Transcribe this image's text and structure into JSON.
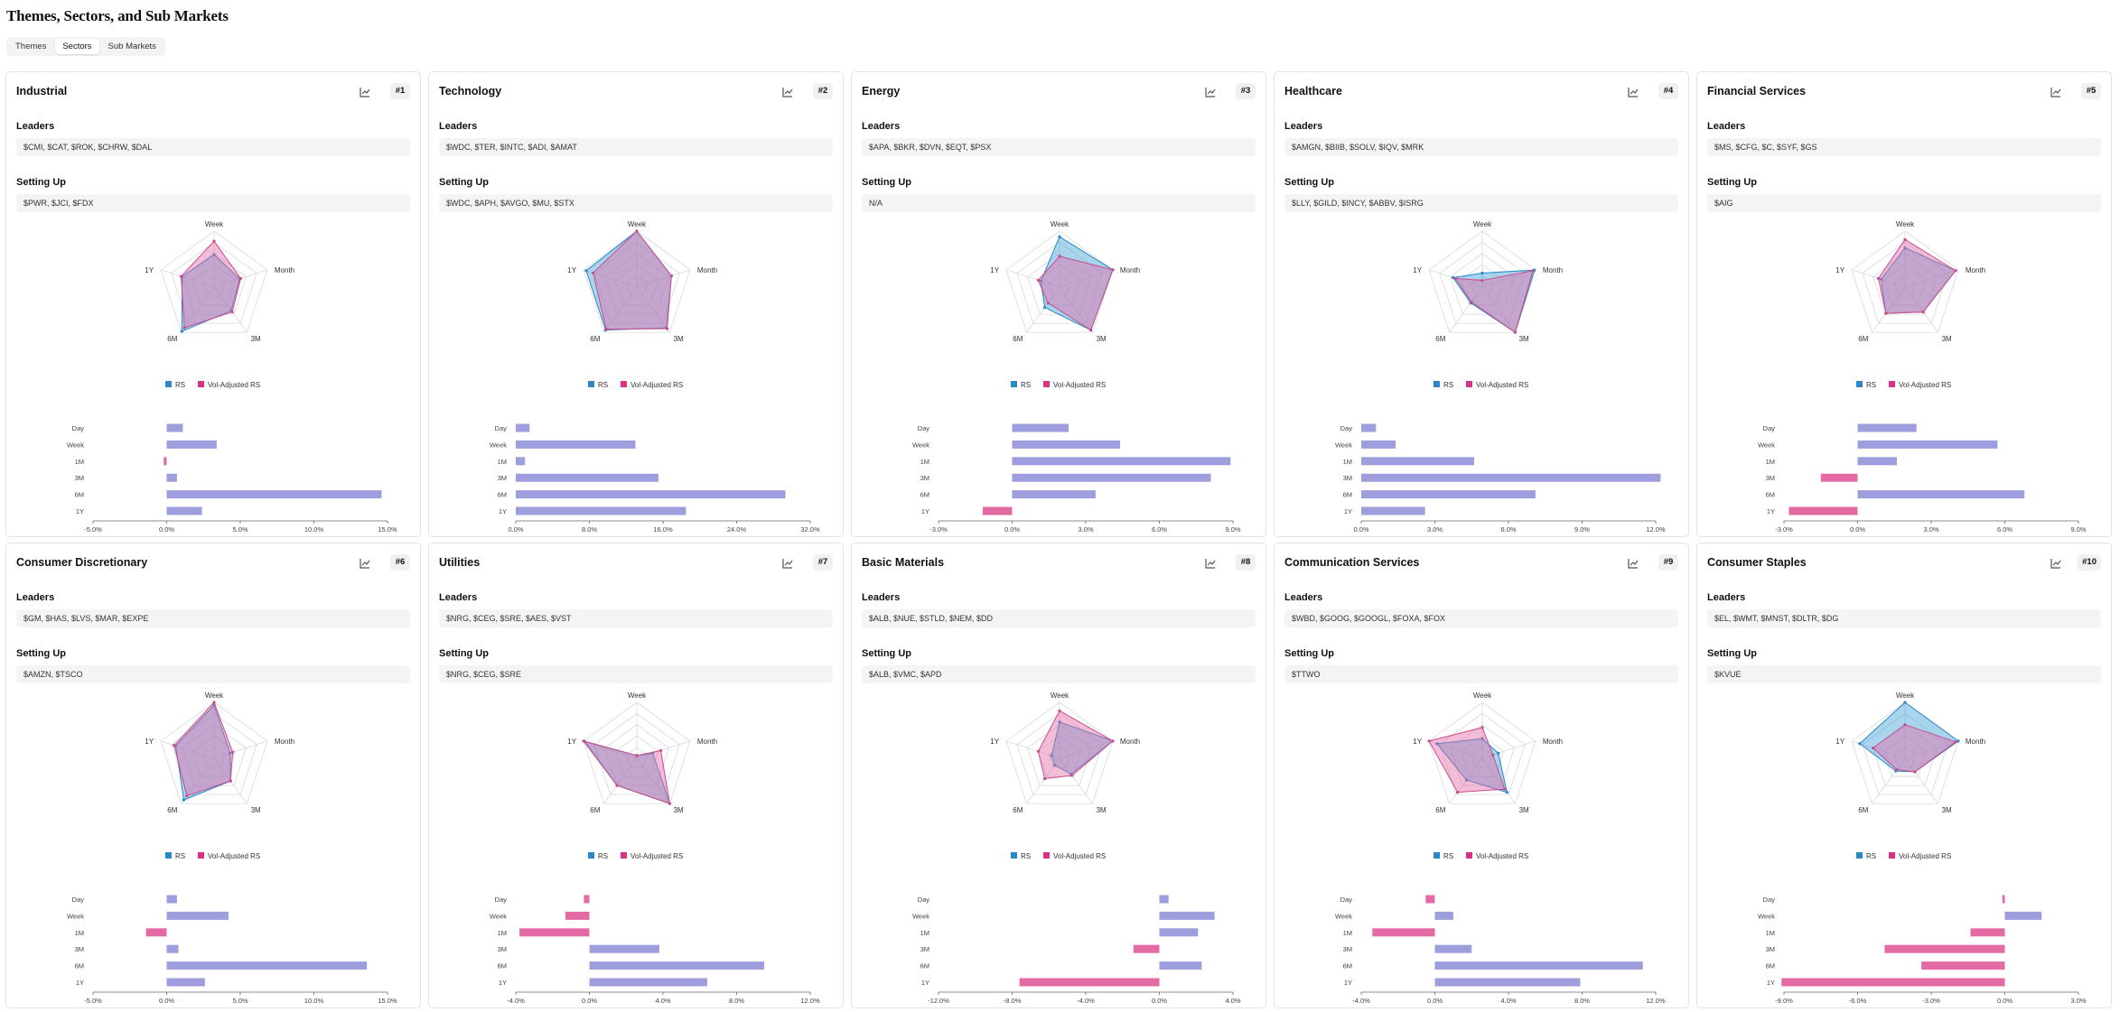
{
  "page": {
    "title": "Themes, Sectors, and Sub Markets",
    "tabs": [
      "Themes",
      "Sectors",
      "Sub Markets"
    ],
    "active_tab": "Sectors"
  },
  "labels": {
    "leaders": "Leaders",
    "setting_up": "Setting Up",
    "legend_rs": "RS",
    "legend_vol": "Vol-Adjusted RS",
    "radar_axes": [
      "Week",
      "Month",
      "3M",
      "6M",
      "1Y"
    ],
    "bar_periods": [
      "Day",
      "Week",
      "1M",
      "3M",
      "6M",
      "1Y"
    ]
  },
  "colors": {
    "rs_fill": "#3da1d8",
    "vol_fill": "#e46aa6",
    "positive_bar": "#9e9ede",
    "negative_bar": "#e46aa6",
    "legend_rs": "#2a87c8",
    "legend_vol": "#d63384"
  },
  "sectors": [
    {
      "name": "Industrial",
      "rank": "#1",
      "leaders": "$CMI, $CAT, $ROK, $CHRW, $DAL",
      "setting_up": "$PWR, $JCI, $FDX",
      "radar_rs": [
        0.58,
        0.48,
        0.52,
        0.98,
        0.6
      ],
      "radar_vol": [
        0.82,
        0.5,
        0.55,
        0.9,
        0.62
      ],
      "bars": [
        1.1,
        3.4,
        -0.2,
        0.7,
        14.6,
        2.4
      ],
      "axis_ticks": [
        "-5.0%",
        "0.0%",
        "5.0%",
        "10.0%",
        "15.0%"
      ],
      "axis_min": -5,
      "axis_max": 15
    },
    {
      "name": "Technology",
      "rank": "#2",
      "leaders": "$WDC, $TER, $INTC, $ADI, $AMAT",
      "setting_up": "$WDC, $APH, $AVGO, $MU, $STX",
      "radar_rs": [
        1.0,
        0.65,
        0.9,
        0.95,
        0.95
      ],
      "radar_vol": [
        1.0,
        0.65,
        0.92,
        0.93,
        0.82
      ],
      "bars": [
        1.5,
        13.0,
        1.0,
        15.5,
        29.3,
        18.5
      ],
      "axis_ticks": [
        "0.0%",
        "8.0%",
        "16.0%",
        "24.0%",
        "32.0%"
      ],
      "axis_min": 0,
      "axis_max": 32
    },
    {
      "name": "Energy",
      "rank": "#3",
      "leaders": "$APA, $BKR, $DVN, $EQT, $PSX",
      "setting_up": "N/A",
      "radar_rs": [
        0.9,
        1.0,
        0.95,
        0.45,
        0.35
      ],
      "radar_vol": [
        0.55,
        1.0,
        0.95,
        0.35,
        0.4
      ],
      "bars": [
        2.3,
        4.4,
        8.9,
        8.1,
        3.4,
        -1.2
      ],
      "axis_ticks": [
        "-3.0%",
        "0.0%",
        "3.0%",
        "6.0%",
        "9.0%"
      ],
      "axis_min": -3,
      "axis_max": 9
    },
    {
      "name": "Healthcare",
      "rank": "#4",
      "leaders": "$AMGN, $BIIB, $SOLV, $IQV, $MRK",
      "setting_up": "$LLY, $GILD, $INCY, $ABBV, $ISRG",
      "radar_rs": [
        0.25,
        0.98,
        1.0,
        0.35,
        0.55
      ],
      "radar_vol": [
        0.12,
        0.95,
        1.0,
        0.33,
        0.5
      ],
      "bars": [
        0.6,
        1.4,
        4.6,
        12.2,
        7.1,
        2.6
      ],
      "axis_ticks": [
        "0.0%",
        "3.0%",
        "6.0%",
        "9.0%",
        "12.0%"
      ],
      "axis_min": 0,
      "axis_max": 12
    },
    {
      "name": "Financial Services",
      "rank": "#5",
      "leaders": "$MS, $CFG, $C, $SYF, $GS",
      "setting_up": "$AIG",
      "radar_rs": [
        0.7,
        0.95,
        0.55,
        0.58,
        0.45
      ],
      "radar_vol": [
        0.85,
        0.95,
        0.55,
        0.58,
        0.5
      ],
      "bars": [
        2.4,
        5.7,
        1.6,
        -1.5,
        6.8,
        -2.8
      ],
      "axis_ticks": [
        "-3.0%",
        "0.0%",
        "3.0%",
        "6.0%",
        "9.0%"
      ],
      "axis_min": -3,
      "axis_max": 9
    },
    {
      "name": "Consumer Discretionary",
      "rank": "#6",
      "leaders": "$GM, $HAS, $LVS, $MAR, $EXPE",
      "setting_up": "$AMZN, $TSCO",
      "radar_rs": [
        0.95,
        0.3,
        0.5,
        0.92,
        0.72
      ],
      "radar_vol": [
        1.0,
        0.35,
        0.5,
        0.83,
        0.75
      ],
      "bars": [
        0.7,
        4.2,
        -1.4,
        0.8,
        13.6,
        2.6
      ],
      "axis_ticks": [
        "-5.0%",
        "0.0%",
        "5.0%",
        "10.0%",
        "15.0%"
      ],
      "axis_min": -5,
      "axis_max": 15
    },
    {
      "name": "Utilities",
      "rank": "#7",
      "leaders": "$NRG, $CEG, $SRE, $AES, $VST",
      "setting_up": "$NRG, $CEG, $SRE",
      "radar_rs": [
        0.05,
        0.3,
        1.0,
        0.6,
        0.98
      ],
      "radar_vol": [
        0.05,
        0.45,
        1.0,
        0.6,
        1.0
      ],
      "bars": [
        -0.3,
        -1.3,
        -3.8,
        3.8,
        9.5,
        6.4
      ],
      "axis_ticks": [
        "-4.0%",
        "0.0%",
        "4.0%",
        "8.0%",
        "12.0%"
      ],
      "axis_min": -4,
      "axis_max": 12
    },
    {
      "name": "Basic Materials",
      "rank": "#8",
      "leaders": "$ALB, $NUE, $STLD, $NEM, $DD",
      "setting_up": "$ALB, $VMC, $APD",
      "radar_rs": [
        0.65,
        1.0,
        0.35,
        0.15,
        0.15
      ],
      "radar_vol": [
        0.85,
        1.0,
        0.38,
        0.45,
        0.4
      ],
      "bars": [
        0.5,
        3.0,
        2.1,
        -1.4,
        2.3,
        -7.6
      ],
      "axis_ticks": [
        "-12.0%",
        "-8.0%",
        "-4.0%",
        "0.0%",
        "4.0%"
      ],
      "axis_min": -12,
      "axis_max": 4
    },
    {
      "name": "Communication Services",
      "rank": "#9",
      "leaders": "$WBD, $GOOG, $GOOGL, $FOXA, $FOX",
      "setting_up": "$TTWO",
      "radar_rs": [
        0.35,
        0.3,
        0.75,
        0.48,
        0.85
      ],
      "radar_vol": [
        0.55,
        0.2,
        0.68,
        0.75,
        1.0
      ],
      "bars": [
        -0.5,
        1.0,
        -3.4,
        2.0,
        11.3,
        7.9
      ],
      "axis_ticks": [
        "-4.0%",
        "0.0%",
        "4.0%",
        "8.0%",
        "12.0%"
      ],
      "axis_min": -4,
      "axis_max": 12
    },
    {
      "name": "Consumer Staples",
      "rank": "#10",
      "leaders": "$EL, $WMT, $MNST, $DLTR, $DG",
      "setting_up": "$KVUE",
      "radar_rs": [
        1.0,
        1.0,
        0.3,
        0.28,
        0.85
      ],
      "radar_vol": [
        0.6,
        0.95,
        0.3,
        0.25,
        0.6
      ],
      "bars": [
        -0.1,
        1.5,
        -1.4,
        -4.9,
        -3.4,
        -9.1
      ],
      "axis_ticks": [
        "-9.0%",
        "-6.0%",
        "-3.0%",
        "0.0%",
        "3.0%"
      ],
      "axis_min": -9,
      "axis_max": 3
    }
  ]
}
